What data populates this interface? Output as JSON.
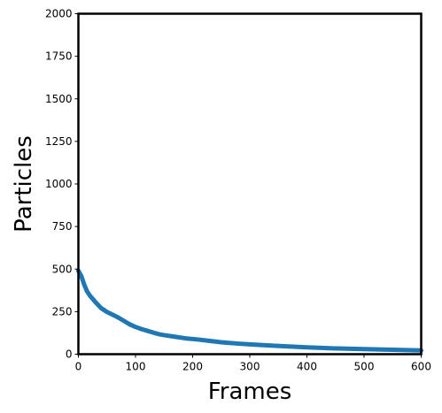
{
  "chart_data": {
    "type": "line",
    "title": "",
    "xlabel": "Frames",
    "ylabel": "Particles",
    "xlim": [
      0,
      600
    ],
    "ylim": [
      0,
      2000
    ],
    "xticks": [
      0,
      100,
      200,
      300,
      400,
      500,
      600
    ],
    "yticks": [
      0,
      250,
      500,
      750,
      1000,
      1250,
      1500,
      1750,
      2000
    ],
    "grid": false,
    "legend": "none",
    "series": [
      {
        "color": "#1f77b4",
        "x": [
          0,
          5,
          10,
          15,
          20,
          30,
          40,
          50,
          60,
          70,
          80,
          90,
          100,
          110,
          120,
          130,
          140,
          150,
          170,
          190,
          210,
          230,
          250,
          280,
          300,
          330,
          360,
          400,
          450,
          500,
          550,
          600
        ],
        "y": [
          490,
          460,
          410,
          370,
          345,
          305,
          270,
          248,
          232,
          215,
          195,
          175,
          160,
          148,
          138,
          128,
          118,
          112,
          102,
          92,
          86,
          78,
          70,
          62,
          58,
          52,
          47,
          40,
          34,
          30,
          26,
          22
        ]
      }
    ]
  }
}
